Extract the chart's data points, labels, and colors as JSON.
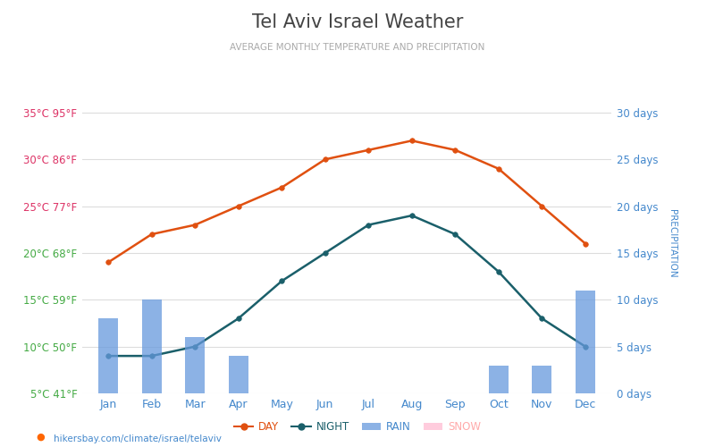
{
  "title": "Tel Aviv Israel Weather",
  "subtitle": "AVERAGE MONTHLY TEMPERATURE AND PRECIPITATION",
  "months": [
    "Jan",
    "Feb",
    "Mar",
    "Apr",
    "May",
    "Jun",
    "Jul",
    "Aug",
    "Sep",
    "Oct",
    "Nov",
    "Dec"
  ],
  "day_temp": [
    19,
    22,
    23,
    25,
    27,
    30,
    31,
    32,
    31,
    29,
    25,
    21
  ],
  "night_temp": [
    9,
    9,
    10,
    13,
    17,
    20,
    23,
    24,
    22,
    18,
    13,
    10
  ],
  "rain_days": [
    8,
    10,
    6,
    4,
    0,
    0,
    0,
    0,
    0,
    3,
    3,
    11
  ],
  "snow_days": [
    0,
    0,
    0,
    0,
    0,
    0,
    0,
    0,
    0,
    0,
    0,
    0
  ],
  "bg_color": "#ffffff",
  "plot_bg_color": "#ffffff",
  "day_color": "#e05010",
  "night_color": "#1a5f6a",
  "rain_color": "#6699dd",
  "snow_color": "#ffccdd",
  "left_tick_color_upper": "#dd3366",
  "left_tick_color_lower": "#44aa44",
  "right_tick_color": "#4488cc",
  "month_color": "#4488cc",
  "title_color": "#444444",
  "subtitle_color": "#aaaaaa",
  "temp_yticks_c": [
    5,
    10,
    15,
    20,
    25,
    30,
    35
  ],
  "temp_yticks_f": [
    41,
    50,
    59,
    68,
    77,
    86,
    95
  ],
  "precip_yticks": [
    0,
    5,
    10,
    15,
    20,
    25,
    30
  ],
  "ylim_temp": [
    5,
    37
  ],
  "ylim_precip": [
    0,
    32
  ],
  "footer": "hikersbay.com/climate/israel/telaviv"
}
